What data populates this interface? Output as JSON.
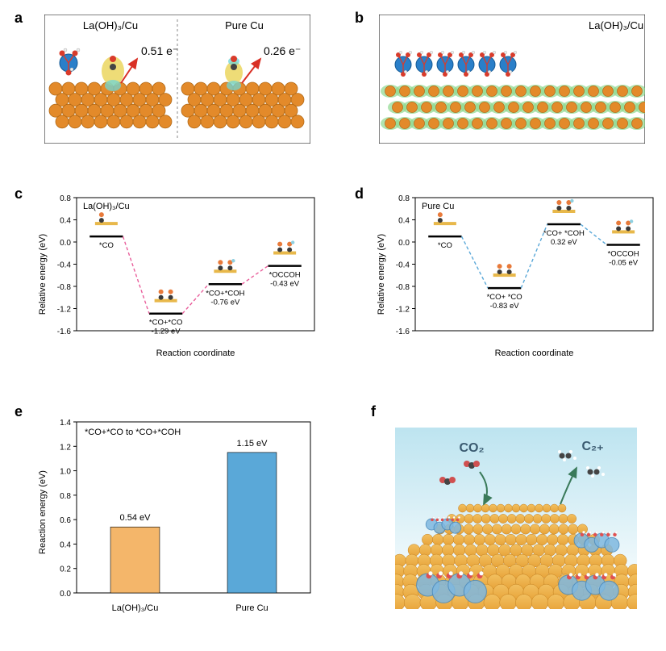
{
  "panel_a": {
    "left_title": "La(OH)₃/Cu",
    "right_title": "Pure Cu",
    "left_val": "0.51 e⁻",
    "right_val": "0.26 e⁻",
    "cu_color": "#e38a2a",
    "cu_stroke": "#b36a17",
    "la_color": "#2a7fc9",
    "o_color": "#d93b2b",
    "h_color": "#eeeeee",
    "iso_yellow": "#e8d04a",
    "iso_cyan": "#6fd6d6",
    "arrow_color": "#d93025"
  },
  "panel_b": {
    "title": "La(OH)₃/Cu",
    "cu_color": "#e38a2a",
    "cu_stroke": "#b36a17",
    "la_color": "#2a7fc9",
    "o_color": "#d93b2b",
    "h_color": "#eeeeee",
    "iso_green": "#8fd98f"
  },
  "panel_c": {
    "title": "La(OH)₃/Cu",
    "xlabel": "Reaction coordinate",
    "ylabel": "Relative energy (eV)",
    "ylim": [
      -1.6,
      0.8
    ],
    "yticks": [
      -1.6,
      -1.2,
      -0.8,
      -0.4,
      0,
      0.4,
      0.8
    ],
    "steps": [
      {
        "label": "*CO",
        "value": 0.1
      },
      {
        "label": "*CO+*CO",
        "value": -1.29,
        "ann": "-1.29 eV"
      },
      {
        "label": "*CO+*COH",
        "value": -0.76,
        "ann": "-0.76 eV"
      },
      {
        "label": "*OCCOH",
        "value": -0.43,
        "ann": "-0.43 eV"
      }
    ],
    "line_color": "#e95e9b",
    "cu_bar": "#e8b84a",
    "c_atom": "#3a3a3a",
    "o_atom": "#e87a3a",
    "h_atom": "#8ecfe0"
  },
  "panel_d": {
    "title": "Pure Cu",
    "xlabel": "Reaction coordinate",
    "ylabel": "Relative energy (eV)",
    "ylim": [
      -1.6,
      0.8
    ],
    "yticks": [
      -1.6,
      -1.2,
      -0.8,
      -0.4,
      0,
      0.4,
      0.8
    ],
    "steps": [
      {
        "label": "*CO",
        "value": 0.1
      },
      {
        "label": "*CO+ *CO",
        "value": -0.83,
        "ann": "-0.83 eV"
      },
      {
        "label": "*CO+ *COH",
        "value": 0.32,
        "ann": "0.32 eV"
      },
      {
        "label": "*OCCOH",
        "value": -0.05,
        "ann": "-0.05 eV"
      }
    ],
    "line_color": "#5aa8d8",
    "cu_bar": "#e8b84a",
    "c_atom": "#3a3a3a",
    "o_atom": "#e87a3a",
    "h_atom": "#8ecfe0"
  },
  "panel_e": {
    "title": "*CO+*CO to *CO+*COH",
    "xlabel": "",
    "ylabel": "Reaction energy (eV)",
    "ylim": [
      0,
      1.4
    ],
    "yticks": [
      0,
      0.2,
      0.4,
      0.6,
      0.8,
      1.0,
      1.2,
      1.4
    ],
    "bars": [
      {
        "label": "La(OH)₃/Cu",
        "value": 0.54,
        "ann": "0.54 eV",
        "color": "#f4b66a"
      },
      {
        "label": "Pure Cu",
        "value": 1.15,
        "ann": "1.15 eV",
        "color": "#5aa8d8"
      }
    ]
  },
  "panel_f": {
    "left_mol": "CO₂",
    "right_mol": "C₂₊",
    "surface_color": "#e8a43a",
    "la_color": "#7fb8e0",
    "sky_color": "#bde4f0"
  }
}
